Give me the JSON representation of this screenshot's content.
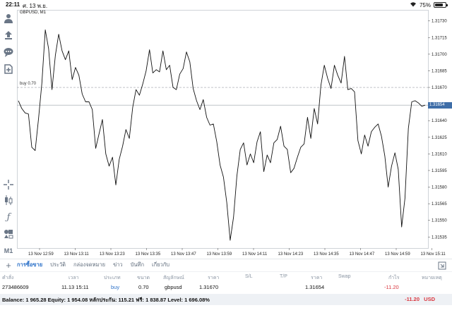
{
  "status": {
    "time": "22:11",
    "date": "ศ. 13 พ.ย.",
    "battery": "75%",
    "battery_level": 0.75
  },
  "toolbar": {
    "icons": [
      "person-icon",
      "trade-icon",
      "chat-icon",
      "add-document-icon",
      "crosshair-icon",
      "candles-icon",
      "function-icon",
      "objects-icon"
    ],
    "timeframe": "M1"
  },
  "chart": {
    "symbol": "GBPUSD, M1",
    "order_line_label": "buy 0.70",
    "current_price_tag": "1.31654",
    "colors": {
      "line": "#111111",
      "order_line": "#9aa0a8",
      "price_line": "#9aa0a8",
      "price_tag_bg": "#3f6ea8"
    }
  },
  "chart_data": {
    "type": "line",
    "ylim": [
      1.31525,
      1.3174
    ],
    "yticks": [
      "1.31730",
      "1.31715",
      "1.31700",
      "1.31685",
      "1.31670",
      "1.31655",
      "1.31640",
      "1.31625",
      "1.31610",
      "1.31595",
      "1.31580",
      "1.31565",
      "1.31550",
      "1.31535"
    ],
    "ytick_values": [
      1.3173,
      1.31715,
      1.317,
      1.31685,
      1.3167,
      1.31655,
      1.3164,
      1.31625,
      1.3161,
      1.31595,
      1.3158,
      1.31565,
      1.3155,
      1.31535
    ],
    "xticks": [
      "13 Nov 12:59",
      "13 Nov 13:11",
      "13 Nov 13:23",
      "13 Nov 13:35",
      "13 Nov 13:47",
      "13 Nov 13:59",
      "13 Nov 14:11",
      "13 Nov 14:23",
      "13 Nov 14:35",
      "13 Nov 14:47",
      "13 Nov 14:59",
      "13 Nov 15:11"
    ],
    "order_price": 1.3167,
    "current_price": 1.31654,
    "values": [
      1.31658,
      1.31651,
      1.31647,
      1.31646,
      1.31616,
      1.31613,
      1.31642,
      1.31674,
      1.31722,
      1.31705,
      1.31668,
      1.31699,
      1.31718,
      1.31703,
      1.31695,
      1.31703,
      1.31677,
      1.31688,
      1.31681,
      1.31664,
      1.31657,
      1.31657,
      1.3165,
      1.31615,
      1.31628,
      1.31641,
      1.3161,
      1.31599,
      1.31607,
      1.31582,
      1.31605,
      1.31617,
      1.31632,
      1.31624,
      1.31652,
      1.31668,
      1.31663,
      1.31673,
      1.31685,
      1.31704,
      1.31683,
      1.31686,
      1.31684,
      1.31703,
      1.31686,
      1.3169,
      1.3167,
      1.31668,
      1.31682,
      1.31687,
      1.31702,
      1.31693,
      1.31669,
      1.31658,
      1.3165,
      1.31659,
      1.31643,
      1.31636,
      1.31637,
      1.31621,
      1.316,
      1.31589,
      1.31566,
      1.31532,
      1.31553,
      1.3159,
      1.31614,
      1.3162,
      1.316,
      1.3161,
      1.31602,
      1.31621,
      1.3163,
      1.31594,
      1.31609,
      1.31602,
      1.3162,
      1.31623,
      1.31635,
      1.31617,
      1.31614,
      1.31593,
      1.31597,
      1.31607,
      1.31616,
      1.31619,
      1.31643,
      1.31624,
      1.31651,
      1.31637,
      1.31672,
      1.3169,
      1.31678,
      1.31669,
      1.3169,
      1.31681,
      1.31674,
      1.31698,
      1.31668,
      1.31669,
      1.31666,
      1.31622,
      1.3161,
      1.31627,
      1.31617,
      1.3163,
      1.31634,
      1.31637,
      1.31626,
      1.31608,
      1.3158,
      1.31599,
      1.31611,
      1.31596,
      1.31544,
      1.3157,
      1.31633,
      1.31657,
      1.31658,
      1.31656,
      1.31653,
      1.31654
    ]
  },
  "tabs": [
    "การซื้อขาย",
    "ประวัติ",
    "กล่องจดหมาย",
    "ข่าว",
    "บันทึก",
    "เกี่ยวกับ"
  ],
  "table": {
    "headers": [
      "คำสั่ง",
      "เวลา",
      "ประเภท",
      "ขนาด",
      "สัญลักษณ์",
      "ราคา",
      "S/L",
      "T/P",
      "ราคา",
      "Swap",
      "กำไร",
      "หมายเหตุ"
    ],
    "rows": [
      [
        "273486609",
        "11.13 15:11",
        "buy",
        "0.70",
        "gbpusd",
        "1.31670",
        "",
        "",
        "1.31654",
        "",
        "-11.20",
        ""
      ]
    ]
  },
  "summary": {
    "text": "Balance: 1 965.28 Equity: 1 954.08 หลักประกัน: 115.21 ฟรี: 1 838.87 Level: 1 696.08%",
    "profit": "-11.20",
    "currency": "USD"
  }
}
